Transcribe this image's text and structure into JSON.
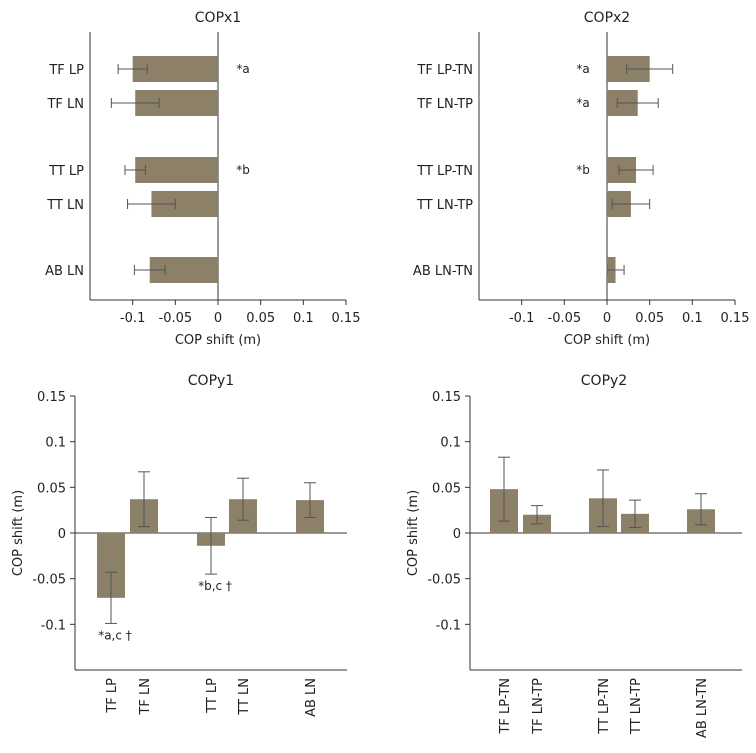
{
  "colors": {
    "bar": "#8c8068",
    "axis": "#333333",
    "error": "#555555",
    "text": "#222222"
  },
  "chart_data": [
    {
      "id": "copx1",
      "type": "bar",
      "orientation": "horizontal",
      "title": "COPx1",
      "xlabel": "COP shift (m)",
      "ylabel": "",
      "xlim": [
        -0.15,
        0.15
      ],
      "xticks": [
        "-0.1",
        "-0.05",
        "0",
        "0.05",
        "0.1",
        "0.15"
      ],
      "xtick_values": [
        -0.1,
        -0.05,
        0,
        0.05,
        0.1,
        0.15
      ],
      "bars": [
        {
          "category": "TF LP",
          "value": -0.1,
          "error": 0.017,
          "annotation": "*a"
        },
        {
          "category": "TF LN",
          "value": -0.097,
          "error": 0.028,
          "annotation": ""
        },
        {
          "category": "TT LP",
          "value": -0.097,
          "error": 0.012,
          "annotation": "*b"
        },
        {
          "category": "TT LN",
          "value": -0.078,
          "error": 0.028,
          "annotation": ""
        },
        {
          "category": "AB LN",
          "value": -0.08,
          "error": 0.018,
          "annotation": ""
        }
      ]
    },
    {
      "id": "copx2",
      "type": "bar",
      "orientation": "horizontal",
      "title": "COPx2",
      "xlabel": "COP shift (m)",
      "ylabel": "",
      "xlim": [
        -0.15,
        0.15
      ],
      "xticks": [
        "-0.1",
        "-0.05",
        "0",
        "0.05",
        "0.1",
        "0.15"
      ],
      "xtick_values": [
        -0.1,
        -0.05,
        0,
        0.05,
        0.1,
        0.15
      ],
      "bars": [
        {
          "category": "TF LP-TN",
          "value": 0.05,
          "error": 0.027,
          "annotation": "*a"
        },
        {
          "category": "TF LN-TP",
          "value": 0.036,
          "error": 0.024,
          "annotation": "*a"
        },
        {
          "category": "TT LP-TN",
          "value": 0.034,
          "error": 0.02,
          "annotation": "*b"
        },
        {
          "category": "TT LN-TP",
          "value": 0.028,
          "error": 0.022,
          "annotation": ""
        },
        {
          "category": "AB LN-TN",
          "value": 0.01,
          "error": 0.01,
          "annotation": ""
        }
      ]
    },
    {
      "id": "copy1",
      "type": "bar",
      "orientation": "vertical",
      "title": "COPy1",
      "xlabel": "",
      "ylabel": "COP shift (m)",
      "ylim": [
        -0.15,
        0.15
      ],
      "yticks": [
        "0.15",
        "0.1",
        "0.05",
        "0",
        "-0.05",
        "-0.1"
      ],
      "ytick_values": [
        0.15,
        0.1,
        0.05,
        0,
        -0.05,
        -0.1
      ],
      "bars": [
        {
          "category": "TF LP",
          "value": -0.071,
          "error": 0.028,
          "annotation": "*a,c †"
        },
        {
          "category": "TF LN",
          "value": 0.037,
          "error": 0.03,
          "annotation": ""
        },
        {
          "category": "TT LP",
          "value": -0.014,
          "error": 0.031,
          "annotation": "*b,c †"
        },
        {
          "category": "TT LN",
          "value": 0.037,
          "error": 0.023,
          "annotation": ""
        },
        {
          "category": "AB LN",
          "value": 0.036,
          "error": 0.019,
          "annotation": ""
        }
      ]
    },
    {
      "id": "copy2",
      "type": "bar",
      "orientation": "vertical",
      "title": "COPy2",
      "xlabel": "",
      "ylabel": "COP shift (m)",
      "ylim": [
        -0.15,
        0.15
      ],
      "yticks": [
        "0.15",
        "0.1",
        "0.05",
        "0",
        "-0.05",
        "-0.1"
      ],
      "ytick_values": [
        0.15,
        0.1,
        0.05,
        0,
        -0.05,
        -0.1
      ],
      "bars": [
        {
          "category": "TF LP-TN",
          "value": 0.048,
          "error": 0.035,
          "annotation": ""
        },
        {
          "category": "TF LN-TP",
          "value": 0.02,
          "error": 0.01,
          "annotation": ""
        },
        {
          "category": "TT LP-TN",
          "value": 0.038,
          "error": 0.031,
          "annotation": ""
        },
        {
          "category": "TT LN-TP",
          "value": 0.021,
          "error": 0.015,
          "annotation": ""
        },
        {
          "category": "AB LN-TN",
          "value": 0.026,
          "error": 0.017,
          "annotation": ""
        }
      ]
    }
  ]
}
